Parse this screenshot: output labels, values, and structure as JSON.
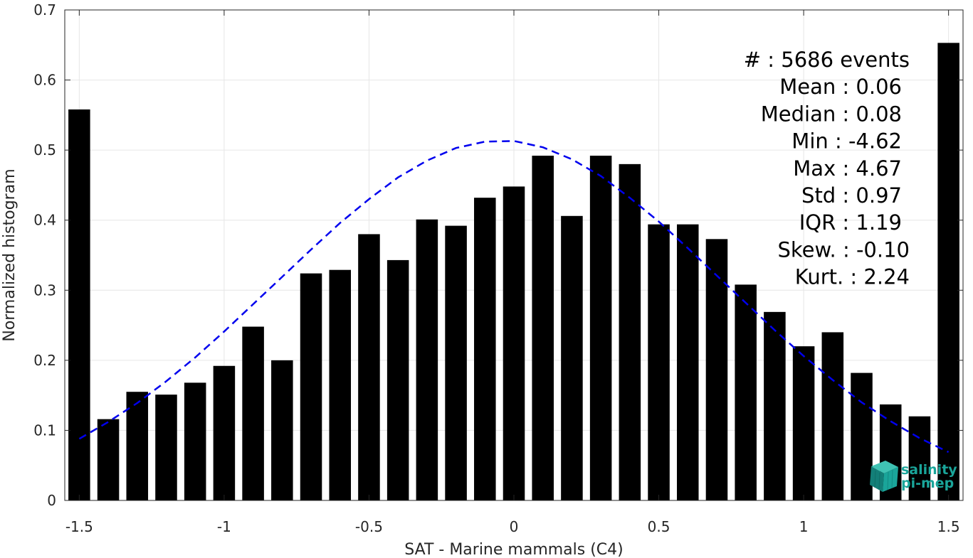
{
  "chart_data": {
    "type": "bar",
    "xlabel": "SAT - Marine mammals (C4)",
    "ylabel": "Normalized histogram",
    "xlim": [
      -1.55,
      1.55
    ],
    "ylim": [
      0,
      0.7
    ],
    "grid": true,
    "x_ticks": [
      -1.5,
      -1,
      -0.5,
      0,
      0.5,
      1,
      1.5
    ],
    "x_tick_labels": [
      "-1.5",
      "-1",
      "-0.5",
      "0",
      "0.5",
      "1",
      "1.5"
    ],
    "y_ticks": [
      0,
      0.1,
      0.2,
      0.3,
      0.4,
      0.5,
      0.6,
      0.7
    ],
    "y_tick_labels": [
      "0",
      "0.1",
      "0.2",
      "0.3",
      "0.4",
      "0.5",
      "0.6",
      "0.7"
    ],
    "bar_width": 0.075,
    "bars": {
      "x": [
        -1.5,
        -1.4,
        -1.3,
        -1.2,
        -1.1,
        -1.0,
        -0.9,
        -0.8,
        -0.7,
        -0.6,
        -0.5,
        -0.4,
        -0.3,
        -0.2,
        -0.1,
        0.0,
        0.1,
        0.2,
        0.3,
        0.4,
        0.5,
        0.6,
        0.7,
        0.8,
        0.9,
        1.0,
        1.1,
        1.2,
        1.3,
        1.4,
        1.5
      ],
      "values": [
        0.558,
        0.116,
        0.155,
        0.151,
        0.168,
        0.192,
        0.248,
        0.2,
        0.324,
        0.329,
        0.38,
        0.343,
        0.401,
        0.392,
        0.432,
        0.448,
        0.492,
        0.406,
        0.492,
        0.48,
        0.394,
        0.394,
        0.373,
        0.308,
        0.269,
        0.22,
        0.24,
        0.182,
        0.137,
        0.12,
        0.653
      ],
      "color": "#000000"
    },
    "fit_curve": {
      "style": "dashed",
      "color": "#0000ee",
      "x": [
        -1.5,
        -1.4,
        -1.3,
        -1.2,
        -1.1,
        -1.0,
        -0.9,
        -0.8,
        -0.7,
        -0.6,
        -0.5,
        -0.4,
        -0.3,
        -0.2,
        -0.1,
        0.0,
        0.1,
        0.2,
        0.3,
        0.4,
        0.5,
        0.6,
        0.7,
        0.8,
        0.9,
        1.0,
        1.1,
        1.2,
        1.3,
        1.4,
        1.5
      ],
      "y": [
        0.088,
        0.112,
        0.139,
        0.17,
        0.204,
        0.241,
        0.28,
        0.319,
        0.358,
        0.396,
        0.43,
        0.461,
        0.485,
        0.503,
        0.512,
        0.513,
        0.504,
        0.487,
        0.463,
        0.432,
        0.398,
        0.36,
        0.321,
        0.282,
        0.243,
        0.206,
        0.172,
        0.14,
        0.113,
        0.089,
        0.069
      ]
    },
    "stats_box": {
      "lines": [
        "#  : 5686 events",
        "Mean : 0.06",
        "Median : 0.08",
        "Min : -4.62",
        "Max : 4.67",
        "Std : 0.97",
        "IQR : 1.19",
        "Skew. : -0.10",
        "Kurt. : 2.24"
      ]
    }
  },
  "logo": {
    "line1": "salinity",
    "line2": "pi-mep",
    "color": "#1aa59a"
  }
}
